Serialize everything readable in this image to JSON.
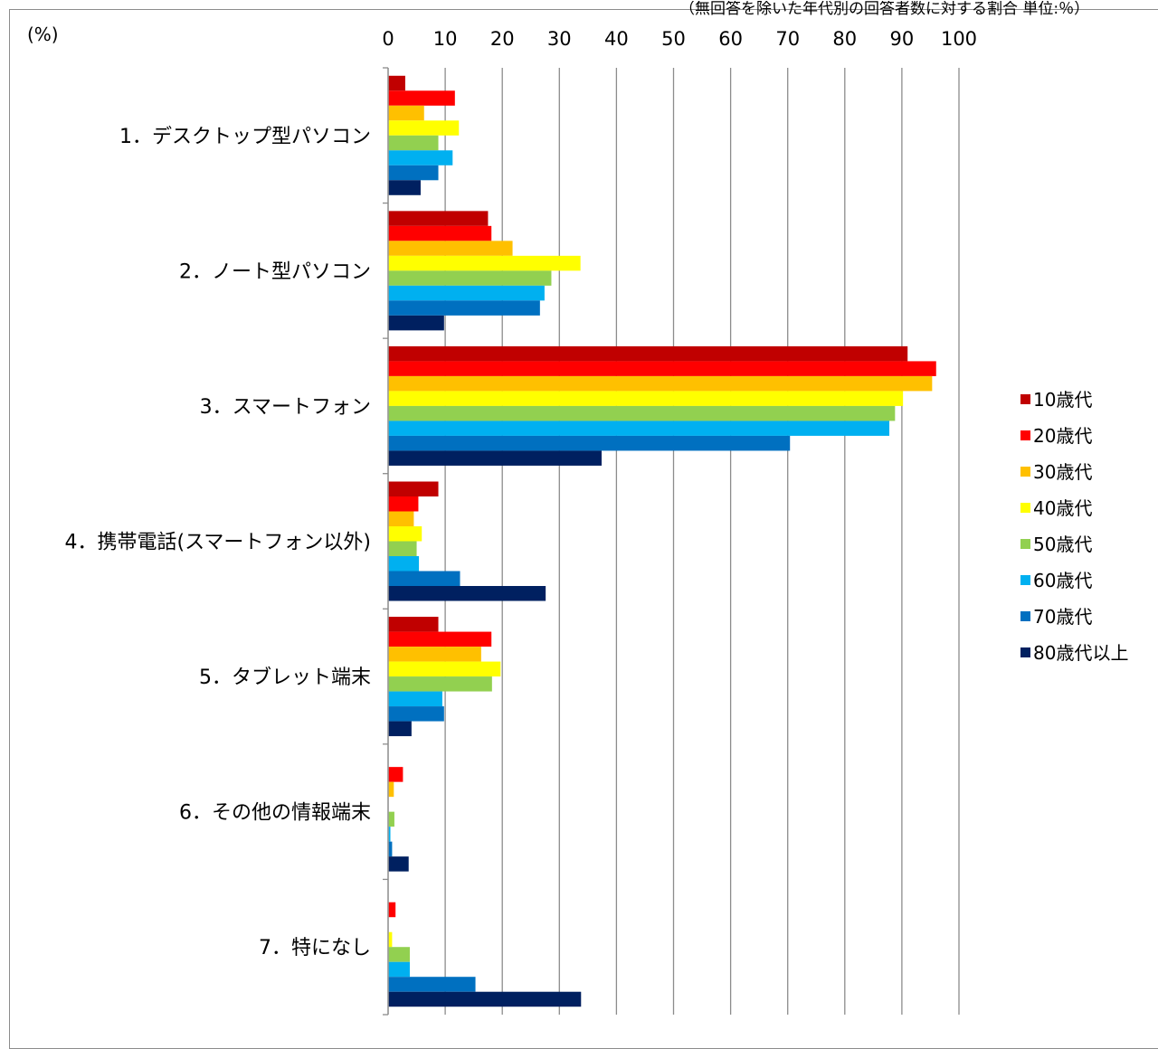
{
  "note": "（無回答を除いた年代別の回答者数に対する割合 単位:％）",
  "chart_data": {
    "type": "bar",
    "orientation": "horizontal",
    "unit_label": "(%)",
    "xlim": [
      0,
      100
    ],
    "x_ticks": [
      0,
      10,
      20,
      30,
      40,
      50,
      60,
      70,
      80,
      90,
      100
    ],
    "grid": true,
    "legend_position": "right",
    "categories": [
      "1．デスクトップ型パソコン",
      "2．ノート型パソコン",
      "3．スマートフォン",
      "4．携帯電話(スマートフォン以外)",
      "5．タブレット端末",
      "6．その他の情報端末",
      "7．特になし"
    ],
    "series": [
      {
        "name": "10歳代",
        "color": "#c00000",
        "values": [
          3,
          17.5,
          91,
          8.8,
          8.8,
          0,
          0
        ]
      },
      {
        "name": "20歳代",
        "color": "#ff0000",
        "values": [
          11.7,
          18.1,
          96,
          5.3,
          18.1,
          2.6,
          1.3
        ]
      },
      {
        "name": "30歳代",
        "color": "#ffc000",
        "values": [
          6.3,
          21.8,
          95.3,
          4.5,
          16.3,
          1,
          0
        ]
      },
      {
        "name": "40歳代",
        "color": "#ffff00",
        "values": [
          12.4,
          33.7,
          90.2,
          5.9,
          19.7,
          0,
          0.7
        ]
      },
      {
        "name": "50歳代",
        "color": "#92d050",
        "values": [
          8.8,
          28.6,
          88.8,
          5,
          18.2,
          1.1,
          3.8
        ]
      },
      {
        "name": "60歳代",
        "color": "#00b0f0",
        "values": [
          11.3,
          27.4,
          87.8,
          5.4,
          9.5,
          0.4,
          3.8
        ]
      },
      {
        "name": "70歳代",
        "color": "#0070c0",
        "values": [
          8.8,
          26.6,
          70.4,
          12.6,
          9.8,
          0.7,
          15.3
        ]
      },
      {
        "name": "80歳代以上",
        "color": "#002060",
        "values": [
          5.7,
          9.8,
          37.4,
          27.6,
          4.1,
          3.6,
          33.8
        ]
      }
    ]
  }
}
